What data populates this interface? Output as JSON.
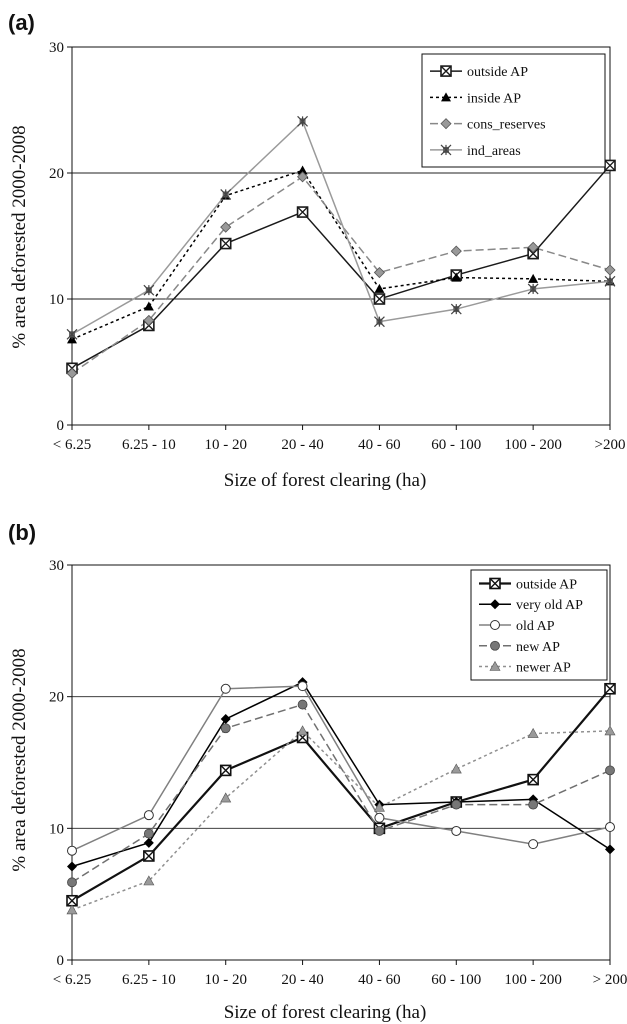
{
  "chart_data": [
    {
      "panel": "(a)",
      "type": "line",
      "xlabel": "Size of forest clearing (ha)",
      "ylabel": "% area deforested 2000-2008",
      "categories": [
        "< 6.25",
        "6.25 - 10",
        "10 - 20",
        "20 - 40",
        "40 - 60",
        "60 - 100",
        "100 - 200",
        ">200"
      ],
      "ylim": [
        0,
        30
      ],
      "yticks": [
        0,
        10,
        20,
        30
      ],
      "grid": "horizontal",
      "legend": "top-right",
      "series": [
        {
          "name": "outside AP",
          "color": "#1a1a1a",
          "marker": "boxed-x",
          "dash": "solid",
          "values": [
            4.5,
            7.9,
            14.4,
            16.9,
            10.0,
            11.9,
            13.6,
            20.6
          ]
        },
        {
          "name": "inside AP",
          "color": "#000000",
          "marker": "triangle",
          "dash": "dotted",
          "values": [
            6.8,
            9.4,
            18.2,
            20.2,
            10.8,
            11.7,
            11.6,
            11.4
          ]
        },
        {
          "name": "cons_reserves",
          "color": "#888888",
          "marker": "diamond",
          "dash": "dashed",
          "values": [
            4.1,
            8.3,
            15.7,
            19.7,
            12.1,
            13.8,
            14.1,
            12.3
          ]
        },
        {
          "name": "ind_areas",
          "color": "#9a9a9a",
          "marker": "asterisk",
          "dash": "solid",
          "values": [
            7.2,
            10.7,
            18.3,
            24.1,
            8.2,
            9.2,
            10.8,
            11.4
          ]
        }
      ]
    },
    {
      "panel": "(b)",
      "type": "line",
      "xlabel": "Size of forest clearing (ha)",
      "ylabel": "% area deforested 2000-2008",
      "categories": [
        "< 6.25",
        "6.25 - 10",
        "10 - 20",
        "20 - 40",
        "40 - 60",
        "60 - 100",
        "100 - 200",
        "> 200"
      ],
      "ylim": [
        0,
        30
      ],
      "yticks": [
        0,
        10,
        20,
        30
      ],
      "grid": "horizontal",
      "legend": "top-right",
      "series": [
        {
          "name": "outside AP",
          "color": "#111111",
          "marker": "boxed-x",
          "dash": "solid-bold",
          "values": [
            4.5,
            7.9,
            14.4,
            16.9,
            10.0,
            12.0,
            13.7,
            20.6
          ]
        },
        {
          "name": "very old AP",
          "color": "#000000",
          "marker": "diamond-filled",
          "dash": "solid",
          "values": [
            7.1,
            8.9,
            18.3,
            21.1,
            11.8,
            12.0,
            12.2,
            8.4
          ]
        },
        {
          "name": "old AP",
          "color": "#808080",
          "marker": "circle-open",
          "dash": "solid",
          "values": [
            8.3,
            11.0,
            20.6,
            20.8,
            10.8,
            9.8,
            8.8,
            10.1
          ]
        },
        {
          "name": "new AP",
          "color": "#707070",
          "marker": "circle-filled",
          "dash": "dashed",
          "values": [
            5.9,
            9.6,
            17.6,
            19.4,
            9.8,
            11.8,
            11.8,
            14.4
          ]
        },
        {
          "name": "newer AP",
          "color": "#909090",
          "marker": "triangle-gray",
          "dash": "dotted",
          "values": [
            3.8,
            6.0,
            12.3,
            17.4,
            11.6,
            14.5,
            17.2,
            17.4
          ]
        }
      ]
    }
  ]
}
